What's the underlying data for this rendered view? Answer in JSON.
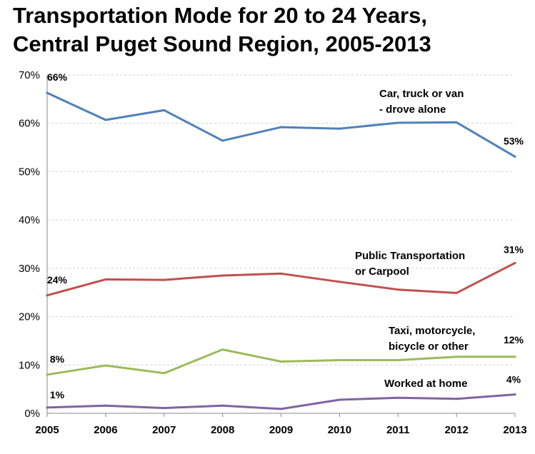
{
  "chart_data": {
    "type": "line",
    "title": "Transportation Mode for 20 to 24 Years, Central Puget Sound Region, 2005-2013",
    "title_lines": [
      "Transportation Mode for 20 to 24 Years,",
      "Central Puget Sound Region, 2005-2013"
    ],
    "xlabel": "",
    "ylabel": "",
    "categories": [
      "2005",
      "2006",
      "2007",
      "2008",
      "2009",
      "2010",
      "2011",
      "2012",
      "2013"
    ],
    "ylim": [
      0,
      70
    ],
    "yticks": [
      "0%",
      "10%",
      "20%",
      "30%",
      "40%",
      "50%",
      "60%",
      "70%"
    ],
    "gridlines": true,
    "series": [
      {
        "name": "Car, truck or van - drove alone",
        "name_lines": [
          "Car, truck or van",
          "- drove alone"
        ],
        "color": "#4f81bd",
        "values": [
          66.3,
          60.7,
          62.7,
          56.4,
          59.2,
          58.9,
          60.1,
          60.2,
          53.1
        ],
        "start_label": "66%",
        "end_label": "53%"
      },
      {
        "name": "Public Transportation or Carpool",
        "name_lines": [
          "Public Transportation",
          "or Carpool"
        ],
        "color": "#c0504d",
        "values": [
          24.4,
          27.7,
          27.6,
          28.5,
          28.9,
          27.2,
          25.6,
          24.9,
          31.1
        ],
        "start_label": "24%",
        "end_label": "31%"
      },
      {
        "name": "Taxi, motorcycle, bicycle or other",
        "name_lines": [
          "Taxi, motorcycle,",
          "bicycle or other"
        ],
        "color": "#9bbb59",
        "values": [
          8.0,
          9.9,
          8.3,
          13.2,
          10.7,
          11.0,
          11.0,
          11.7,
          11.7
        ],
        "start_label": "8%",
        "end_label": "12%"
      },
      {
        "name": "Worked at home",
        "name_lines": [
          "Worked at home"
        ],
        "color": "#8064a2",
        "values": [
          1.2,
          1.6,
          1.1,
          1.6,
          0.9,
          2.8,
          3.2,
          3.0,
          3.9
        ],
        "start_label": "1%",
        "end_label": "4%"
      }
    ]
  }
}
